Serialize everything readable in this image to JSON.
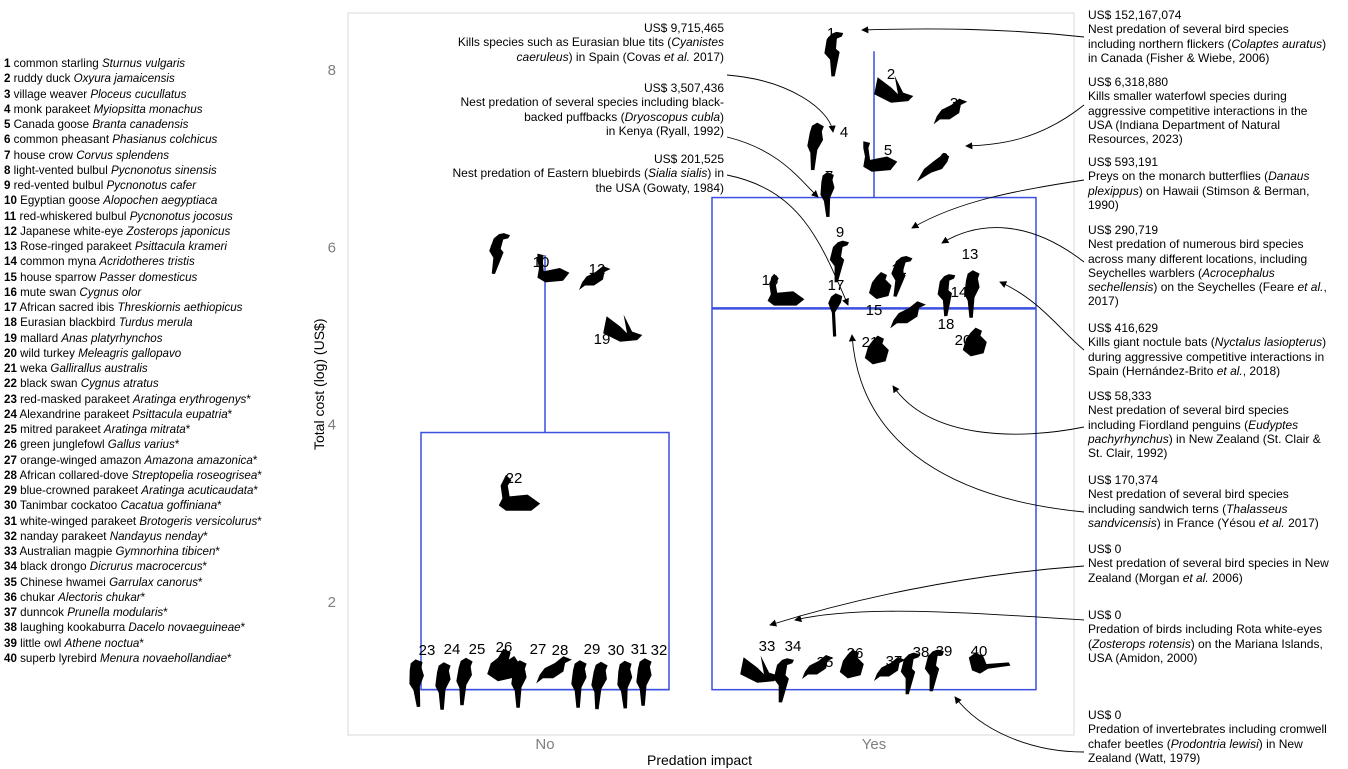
{
  "chart_data": {
    "type": "boxplot",
    "xlabel": "Predation impact",
    "ylabel": "Total cost (log) (US$)",
    "categories": [
      "No",
      "Yes"
    ],
    "yticks": [
      2,
      4,
      6,
      8
    ],
    "ylim": [
      0.6,
      8.6
    ],
    "boxes": [
      {
        "category": "No",
        "whisker_low": 1.0,
        "q1": 1.0,
        "median": 1.0,
        "q3": 3.9,
        "whisker_high": 5.9
      },
      {
        "category": "Yes",
        "whisker_low": 1.0,
        "q1": 1.0,
        "median": 5.3,
        "q3": 6.55,
        "whisker_high": 8.2
      }
    ],
    "points": [
      {
        "id": "1",
        "group": "Yes",
        "y": 8.18
      },
      {
        "id": "2",
        "group": "Yes",
        "y": 7.62
      },
      {
        "id": "3",
        "group": "Yes",
        "y": 7.3
      },
      {
        "id": "4",
        "group": "Yes",
        "y": 7.13
      },
      {
        "id": "5",
        "group": "Yes",
        "y": 7.0
      },
      {
        "id": "6",
        "group": "Yes",
        "y": 6.9
      },
      {
        "id": "7",
        "group": "Yes",
        "y": 6.75
      },
      {
        "id": "8",
        "group": "No",
        "y": 6.0
      },
      {
        "id": "9",
        "group": "Yes",
        "y": 5.95
      },
      {
        "id": "10",
        "group": "No",
        "y": 5.9
      },
      {
        "id": "11",
        "group": "Yes",
        "y": 5.85
      },
      {
        "id": "12",
        "group": "No",
        "y": 5.8
      },
      {
        "id": "13",
        "group": "Yes",
        "y": 5.6
      },
      {
        "id": "14",
        "group": "Yes",
        "y": 5.5
      },
      {
        "id": "15",
        "group": "Yes",
        "y": 5.46
      },
      {
        "id": "16",
        "group": "Yes",
        "y": 5.5
      },
      {
        "id": "17",
        "group": "Yes",
        "y": 5.3
      },
      {
        "id": "18",
        "group": "Yes",
        "y": 5.2
      },
      {
        "id": "19",
        "group": "No",
        "y": 5.0
      },
      {
        "id": "20",
        "group": "Yes",
        "y": 4.9
      },
      {
        "id": "21",
        "group": "Yes",
        "y": 4.8
      },
      {
        "id": "22",
        "group": "No",
        "y": 3.0
      },
      {
        "id": "23",
        "group": "No",
        "y": 1.0
      },
      {
        "id": "24",
        "group": "No",
        "y": 1.0
      },
      {
        "id": "25",
        "group": "No",
        "y": 1.0
      },
      {
        "id": "26",
        "group": "No",
        "y": 1.0
      },
      {
        "id": "27",
        "group": "No",
        "y": 1.0
      },
      {
        "id": "28",
        "group": "No",
        "y": 1.0
      },
      {
        "id": "29",
        "group": "No",
        "y": 1.0
      },
      {
        "id": "30",
        "group": "No",
        "y": 1.0
      },
      {
        "id": "31",
        "group": "No",
        "y": 1.0
      },
      {
        "id": "32",
        "group": "No",
        "y": 1.0
      },
      {
        "id": "33",
        "group": "Yes",
        "y": 1.0
      },
      {
        "id": "34",
        "group": "Yes",
        "y": 1.0
      },
      {
        "id": "35",
        "group": "Yes",
        "y": 1.0
      },
      {
        "id": "36",
        "group": "Yes",
        "y": 1.0
      },
      {
        "id": "37",
        "group": "Yes",
        "y": 1.0
      },
      {
        "id": "38",
        "group": "Yes",
        "y": 1.0
      },
      {
        "id": "39",
        "group": "Yes",
        "y": 1.0
      },
      {
        "id": "40",
        "group": "Yes",
        "y": 1.0
      }
    ],
    "grid": false
  },
  "legend": [
    {
      "num": "1",
      "common": "common starling",
      "latin": "Sturnus vulgaris",
      "star": ""
    },
    {
      "num": "2",
      "common": "ruddy duck",
      "latin": "Oxyura jamaicensis",
      "star": ""
    },
    {
      "num": "3",
      "common": "village weaver",
      "latin": "Ploceus cucullatus",
      "star": ""
    },
    {
      "num": "4",
      "common": "monk parakeet",
      "latin": "Myiopsitta monachus",
      "star": ""
    },
    {
      "num": "5",
      "common": "Canada goose",
      "latin": "Branta canadensis",
      "star": ""
    },
    {
      "num": "6",
      "common": "common pheasant",
      "latin": "Phasianus colchicus",
      "star": ""
    },
    {
      "num": "7",
      "common": "house crow",
      "latin": "Corvus splendens",
      "star": ""
    },
    {
      "num": "8",
      "common": "light-vented bulbul",
      "latin": "Pycnonotus sinensis",
      "star": ""
    },
    {
      "num": "9",
      "common": "red-vented bulbul",
      "latin": "Pycnonotus cafer",
      "star": ""
    },
    {
      "num": "10",
      "common": "Egyptian goose",
      "latin": "Alopochen aegyptiaca",
      "star": ""
    },
    {
      "num": "11",
      "common": "red-whiskered bulbul",
      "latin": "Pycnonotus jocosus",
      "star": ""
    },
    {
      "num": "12",
      "common": "Japanese white-eye",
      "latin": "Zosterops japonicus",
      "star": ""
    },
    {
      "num": "13",
      "common": "Rose-ringed parakeet",
      "latin": "Psittacula krameri",
      "star": ""
    },
    {
      "num": "14",
      "common": "common myna",
      "latin": "Acridotheres tristis",
      "star": ""
    },
    {
      "num": "15",
      "common": "house sparrow",
      "latin": "Passer domesticus",
      "star": ""
    },
    {
      "num": "16",
      "common": "mute swan",
      "latin": "Cygnus olor",
      "star": ""
    },
    {
      "num": "17",
      "common": "African sacred ibis",
      "latin": "Threskiornis aethiopicus",
      "star": ""
    },
    {
      "num": "18",
      "common": "Eurasian blackbird",
      "latin": "Turdus merula",
      "star": ""
    },
    {
      "num": "19",
      "common": "mallard",
      "latin": "Anas platyrhynchos",
      "star": ""
    },
    {
      "num": "20",
      "common": "wild turkey",
      "latin": "Meleagris gallopavo",
      "star": ""
    },
    {
      "num": "21",
      "common": "weka",
      "latin": "Gallirallus australis",
      "star": ""
    },
    {
      "num": "22",
      "common": "black swan",
      "latin": "Cygnus atratus",
      "star": ""
    },
    {
      "num": "23",
      "common": "red-masked parakeet",
      "latin": "Aratinga erythrogenys",
      "star": "*"
    },
    {
      "num": "24",
      "common": "Alexandrine parakeet",
      "latin": "Psittacula eupatria",
      "star": "*"
    },
    {
      "num": "25",
      "common": "mitred parakeet",
      "latin": "Aratinga mitrata",
      "star": "*"
    },
    {
      "num": "26",
      "common": "green junglefowl",
      "latin": "Gallus varius",
      "star": "*"
    },
    {
      "num": "27",
      "common": "orange-winged amazon",
      "latin": "Amazona amazonica",
      "star": "*"
    },
    {
      "num": "28",
      "common": "African collared-dove",
      "latin": "Streptopelia roseogrisea",
      "star": "*"
    },
    {
      "num": "29",
      "common": "blue-crowned parakeet",
      "latin": "Aratinga acuticaudata",
      "star": "*"
    },
    {
      "num": "30",
      "common": "Tanimbar cockatoo",
      "latin": "Cacatua goffiniana",
      "star": "*"
    },
    {
      "num": "31",
      "common": "white-winged parakeet",
      "latin": "Brotogeris versicolurus",
      "star": "*"
    },
    {
      "num": "32",
      "common": "nanday parakeet",
      "latin": "Nandayus nenday",
      "star": "*"
    },
    {
      "num": "33",
      "common": "Australian magpie",
      "latin": "Gymnorhina tibicen",
      "star": "*"
    },
    {
      "num": "34",
      "common": "black drongo",
      "latin": "Dicrurus macrocercus",
      "star": "*"
    },
    {
      "num": "35",
      "common": "Chinese hwamei",
      "latin": "Garrulax canorus",
      "star": "*"
    },
    {
      "num": "36",
      "common": "chukar",
      "latin": "Alectoris chukar",
      "star": "*"
    },
    {
      "num": "37",
      "common": "dunncok",
      "latin": "Prunella modularis",
      "star": "*"
    },
    {
      "num": "38",
      "common": "laughing kookaburra",
      "latin": "Dacelo novaeguineae",
      "star": "*"
    },
    {
      "num": "39",
      "common": "little owl",
      "latin": "Athene noctua",
      "star": "*"
    },
    {
      "num": "40",
      "common": "superb lyrebird",
      "latin": "Menura novaehollandiae",
      "star": "*"
    }
  ],
  "annotations_left": [
    {
      "cost": "US$ 9,715,465",
      "parts": [
        {
          "t": "Kills species such as Eurasian blue tits ("
        },
        {
          "t": "Cyanistes",
          "i": true
        },
        {
          "t": "caeruleus",
          "i": true,
          "br": true
        },
        {
          "t": ") in Spain (Covas "
        },
        {
          "t": "et al.",
          "i": true
        },
        {
          "t": " 2017)"
        }
      ]
    },
    {
      "cost": "US$ 3,507,436",
      "parts": [
        {
          "t": "Nest predation of several species including black-"
        },
        {
          "t": "backed puffbacks (",
          "br": true
        },
        {
          "t": "Dryoscopus cubla",
          "i": true
        },
        {
          "t": ")"
        },
        {
          "t": "in Kenya (Ryall, 1992)",
          "br": true
        }
      ]
    },
    {
      "cost": "US$ 201,525",
      "parts": [
        {
          "t": "Nest predation of Eastern bluebirds ("
        },
        {
          "t": "Sialia sialis",
          "i": true
        },
        {
          "t": ") in"
        },
        {
          "t": "the USA (Gowaty, 1984)",
          "br": true
        }
      ]
    }
  ],
  "annotations_right": [
    {
      "cost": "US$ 152,167,074",
      "parts": [
        {
          "t": "Nest predation of several bird species"
        },
        {
          "t": "including northern flickers (",
          "br": true
        },
        {
          "t": "Colaptes auratus",
          "i": true
        },
        {
          "t": ")"
        },
        {
          "t": "in Canada (Fisher & Wiebe, 2006)",
          "br": true
        }
      ]
    },
    {
      "cost": "US$ 6,318,880",
      "parts": [
        {
          "t": "Kills smaller waterfowl species during"
        },
        {
          "t": "aggressive competitive interactions in the",
          "br": true
        },
        {
          "t": "USA (Indiana Department of Natural",
          "br": true
        },
        {
          "t": "Resources, 2023)",
          "br": true
        }
      ]
    },
    {
      "cost": "US$ 593,191",
      "parts": [
        {
          "t": "Preys on the monarch butterflies ("
        },
        {
          "t": "Danaus",
          "i": true
        },
        {
          "t": "plexippus",
          "i": true,
          "br": true
        },
        {
          "t": ") on Hawaii (Stimson & Berman,"
        },
        {
          "t": "1990)",
          "br": true
        }
      ]
    },
    {
      "cost": "US$ 290,719",
      "parts": [
        {
          "t": "Nest predation of numerous bird species"
        },
        {
          "t": "across many different locations, including",
          "br": true
        },
        {
          "t": "Seychelles warblers (",
          "br": true
        },
        {
          "t": "Acrocephalus",
          "i": true
        },
        {
          "t": "sechellensis",
          "i": true,
          "br": true
        },
        {
          "t": ") on the Seychelles (Feare "
        },
        {
          "t": "et al.",
          "i": true
        },
        {
          "t": ","
        },
        {
          "t": "2017)",
          "br": true
        }
      ]
    },
    {
      "cost": "US$ 416,629",
      "parts": [
        {
          "t": "Kills giant noctule bats ("
        },
        {
          "t": "Nyctalus lasiopterus",
          "i": true
        },
        {
          "t": ")"
        },
        {
          "t": "during aggressive competitive interactions in",
          "br": true
        },
        {
          "t": "Spain (Hernández-Brito ",
          "br": true
        },
        {
          "t": "et al.",
          "i": true
        },
        {
          "t": ", 2018)"
        }
      ]
    },
    {
      "cost": "US$ 58,333",
      "parts": [
        {
          "t": "Nest predation of several bird species"
        },
        {
          "t": "including Fiordland penguins (",
          "br": true
        },
        {
          "t": "Eudyptes",
          "i": true
        },
        {
          "t": "pachyrhynchus",
          "i": true,
          "br": true
        },
        {
          "t": ") in New Zealand (St. Clair &"
        },
        {
          "t": "St. Clair, 1992)",
          "br": true
        }
      ]
    },
    {
      "cost": "US$ 170,374",
      "parts": [
        {
          "t": "Nest predation of several bird species"
        },
        {
          "t": "including sandwich terns (",
          "br": true
        },
        {
          "t": "Thalasseus",
          "i": true
        },
        {
          "t": "sandvicensis",
          "i": true,
          "br": true
        },
        {
          "t": ") in France (Yésou "
        },
        {
          "t": "et al.",
          "i": true
        },
        {
          "t": " 2017)"
        }
      ]
    },
    {
      "cost": "US$ 0",
      "parts": [
        {
          "t": "Nest predation of several bird species in New"
        },
        {
          "t": "Zealand (Morgan ",
          "br": true
        },
        {
          "t": "et al.",
          "i": true
        },
        {
          "t": " 2006)"
        }
      ]
    },
    {
      "cost": "US$ 0",
      "parts": [
        {
          "t": "Predation of birds including Rota white-eyes"
        },
        {
          "t": "(",
          "br": true
        },
        {
          "t": "Zosterops rotensis",
          "i": true
        },
        {
          "t": ") on the Mariana Islands,"
        },
        {
          "t": "USA (Amidon, 2000)",
          "br": true
        }
      ]
    },
    {
      "cost": "US$ 0",
      "parts": [
        {
          "t": "Predation of invertebrates including cromwell"
        },
        {
          "t": "chafer beetles (",
          "br": true
        },
        {
          "t": "Prodontria lewisi",
          "i": true
        },
        {
          "t": ") in New"
        },
        {
          "t": "Zealand (Watt, 1979)",
          "br": true
        }
      ]
    }
  ],
  "colors": {
    "box": "#3b4fe0",
    "frame": "#d9d9d9",
    "tick_text": "#7f7f7f",
    "bird": "#000000",
    "arrow": "#000000"
  }
}
